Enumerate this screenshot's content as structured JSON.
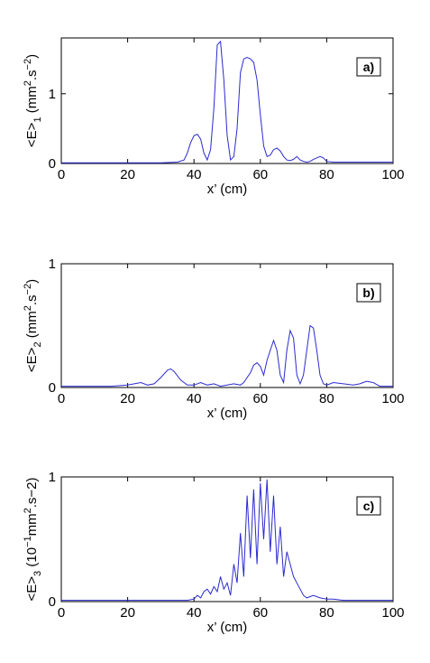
{
  "chart_data": [
    {
      "type": "line",
      "panel_tag": "a)",
      "xlabel": "x’ (cm)",
      "ylabel": {
        "base": "<E>",
        "sub": "1",
        "unit_pre": " (mm",
        "sup1": "2",
        "unit_mid": ".s",
        "sup2": "−2",
        "unit_post": ")"
      },
      "xlim": [
        0,
        100
      ],
      "ylim": [
        0,
        1.8
      ],
      "x_ticks": [
        "0",
        "20",
        "40",
        "60",
        "80",
        "100"
      ],
      "y_ticks": [
        "0",
        "1"
      ],
      "y_tick_values": [
        0,
        1
      ],
      "series": [
        {
          "x": [
            0,
            10,
            20,
            30,
            35,
            37,
            38,
            39,
            40,
            41,
            42,
            43,
            44,
            45,
            46,
            47,
            48,
            49,
            50,
            51,
            52,
            53,
            54,
            55,
            56,
            57,
            58,
            59,
            60,
            61,
            62,
            63,
            64,
            65,
            66,
            67,
            68,
            69,
            70,
            71,
            72,
            73,
            74,
            75,
            76,
            77,
            78,
            79,
            80,
            82,
            85,
            90,
            95,
            100
          ],
          "y": [
            0.01,
            0.01,
            0.01,
            0.01,
            0.02,
            0.05,
            0.15,
            0.3,
            0.4,
            0.42,
            0.35,
            0.15,
            0.05,
            0.2,
            0.8,
            1.7,
            1.75,
            1.2,
            0.4,
            0.05,
            0.1,
            0.5,
            1.3,
            1.5,
            1.52,
            1.5,
            1.45,
            1.2,
            0.7,
            0.25,
            0.1,
            0.12,
            0.2,
            0.22,
            0.18,
            0.1,
            0.05,
            0.04,
            0.06,
            0.1,
            0.05,
            0.03,
            0.02,
            0.03,
            0.06,
            0.08,
            0.1,
            0.08,
            0.03,
            0.02,
            0.02,
            0.02,
            0.02,
            0.02
          ]
        }
      ]
    },
    {
      "type": "line",
      "panel_tag": "b)",
      "xlabel": "x’ (cm)",
      "ylabel": {
        "base": "<E>",
        "sub": "2",
        "unit_pre": " (mm",
        "sup1": "2",
        "unit_mid": ".s",
        "sup2": "−2",
        "unit_post": ")"
      },
      "xlim": [
        0,
        100
      ],
      "ylim": [
        0,
        1
      ],
      "x_ticks": [
        "0",
        "20",
        "40",
        "60",
        "80",
        "100"
      ],
      "y_ticks": [
        "0",
        "1"
      ],
      "y_tick_values": [
        0,
        1
      ],
      "series": [
        {
          "x": [
            0,
            10,
            15,
            20,
            22,
            24,
            26,
            28,
            30,
            32,
            33,
            34,
            36,
            38,
            40,
            42,
            44,
            46,
            48,
            50,
            52,
            54,
            55,
            56,
            57,
            58,
            59,
            60,
            61,
            62,
            63,
            64,
            65,
            66,
            67,
            68,
            69,
            70,
            71,
            72,
            73,
            74,
            75,
            76,
            77,
            78,
            79,
            80,
            82,
            85,
            88,
            90,
            92,
            94,
            96,
            100
          ],
          "y": [
            0.01,
            0.01,
            0.01,
            0.02,
            0.03,
            0.04,
            0.02,
            0.03,
            0.08,
            0.14,
            0.15,
            0.13,
            0.06,
            0.02,
            0.02,
            0.04,
            0.02,
            0.03,
            0.01,
            0.02,
            0.03,
            0.02,
            0.04,
            0.08,
            0.12,
            0.18,
            0.2,
            0.17,
            0.1,
            0.22,
            0.3,
            0.38,
            0.3,
            0.1,
            0.04,
            0.3,
            0.46,
            0.4,
            0.1,
            0.03,
            0.1,
            0.3,
            0.5,
            0.48,
            0.3,
            0.1,
            0.03,
            0.02,
            0.04,
            0.03,
            0.02,
            0.03,
            0.05,
            0.04,
            0.01,
            0.01
          ]
        }
      ]
    },
    {
      "type": "line",
      "panel_tag": "c)",
      "xlabel": "x’ (cm)",
      "ylabel": {
        "base": "<E>",
        "sub": "3",
        "unit_pre": " (10",
        "sup1": "−1",
        "unit_mid": "mm",
        "sup2": "2",
        "unit_post": ".s−2)"
      },
      "xlim": [
        0,
        100
      ],
      "ylim": [
        0,
        1
      ],
      "x_ticks": [
        "0",
        "20",
        "40",
        "60",
        "80",
        "100"
      ],
      "y_ticks": [
        "0",
        "1"
      ],
      "y_tick_values": [
        0,
        1
      ],
      "series": [
        {
          "x": [
            0,
            10,
            20,
            30,
            35,
            38,
            40,
            41,
            42,
            43,
            44,
            45,
            46,
            47,
            48,
            49,
            50,
            51,
            52,
            53,
            54,
            55,
            56,
            57,
            58,
            59,
            60,
            61,
            62,
            63,
            64,
            65,
            66,
            67,
            68,
            69,
            70,
            71,
            72,
            73,
            74,
            75,
            76,
            78,
            80,
            82,
            85,
            90,
            95,
            100
          ],
          "y": [
            0.01,
            0.01,
            0.01,
            0.01,
            0.01,
            0.01,
            0.02,
            0.05,
            0.03,
            0.08,
            0.1,
            0.06,
            0.12,
            0.08,
            0.2,
            0.1,
            0.15,
            0.05,
            0.3,
            0.15,
            0.55,
            0.2,
            0.85,
            0.35,
            0.9,
            0.3,
            0.95,
            0.5,
            0.98,
            0.4,
            0.85,
            0.3,
            0.6,
            0.2,
            0.4,
            0.3,
            0.2,
            0.15,
            0.1,
            0.05,
            0.03,
            0.04,
            0.05,
            0.03,
            0.02,
            0.02,
            0.01,
            0.01,
            0.01,
            0.01
          ]
        }
      ]
    }
  ]
}
